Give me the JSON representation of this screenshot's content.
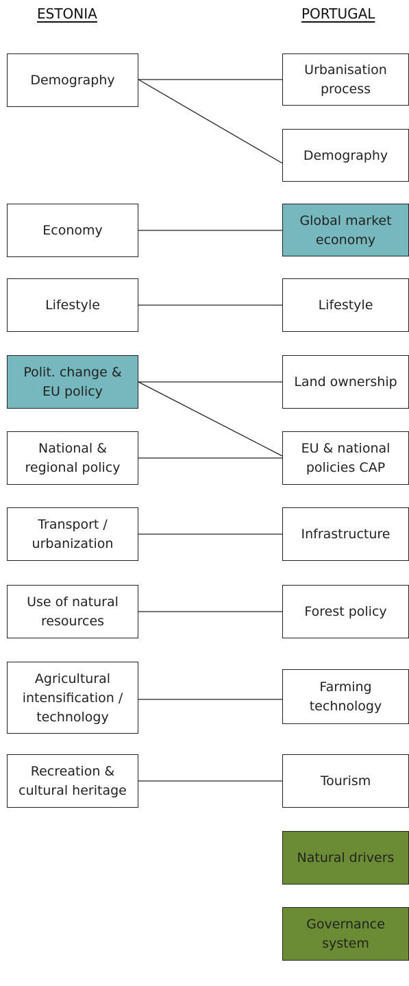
{
  "headers": {
    "left": "ESTONIA",
    "right": "PORTUGAL"
  },
  "left_nodes": [
    {
      "lines": [
        "Demography"
      ]
    },
    {
      "lines": [
        "Economy"
      ]
    },
    {
      "lines": [
        "Lifestyle"
      ]
    },
    {
      "lines": [
        "Polit. change &",
        "EU policy"
      ]
    },
    {
      "lines": [
        "National &",
        "regional policy"
      ]
    },
    {
      "lines": [
        "Transport /",
        "urbanization"
      ]
    },
    {
      "lines": [
        "Use of natural",
        "resources"
      ]
    },
    {
      "lines": [
        "Agricultural",
        "intensification /",
        "technology"
      ]
    },
    {
      "lines": [
        "Recreation &",
        "cultural heritage"
      ]
    }
  ],
  "right_nodes": [
    {
      "lines": [
        "Urbanisation",
        "process"
      ]
    },
    {
      "lines": [
        "Demography"
      ]
    },
    {
      "lines": [
        "Global market",
        "economy"
      ]
    },
    {
      "lines": [
        "Lifestyle"
      ]
    },
    {
      "lines": [
        "Land ownership"
      ]
    },
    {
      "lines": [
        "EU & national",
        "policies CAP"
      ]
    },
    {
      "lines": [
        "Infrastructure"
      ]
    },
    {
      "lines": [
        "Forest policy"
      ]
    },
    {
      "lines": [
        "Farming",
        "technology"
      ]
    },
    {
      "lines": [
        "Tourism"
      ]
    },
    {
      "lines": [
        "Natural drivers"
      ]
    },
    {
      "lines": [
        "Governance",
        "system"
      ]
    }
  ]
}
